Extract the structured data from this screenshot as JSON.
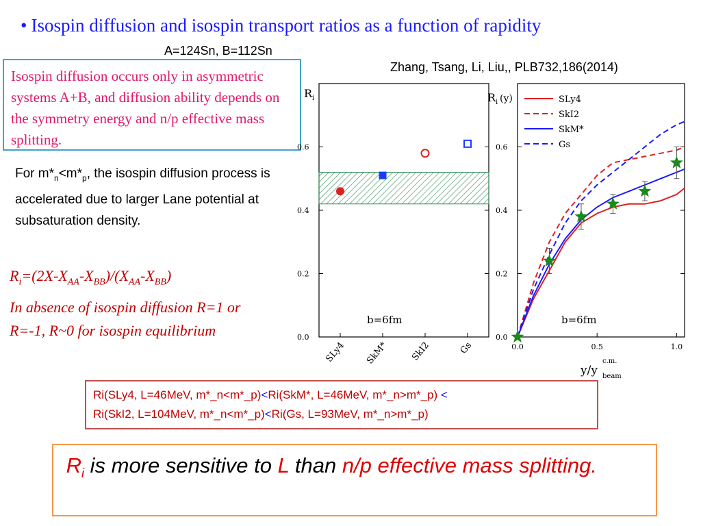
{
  "slide": {
    "bullet": "•",
    "title": "Isospin diffusion and isospin transport ratios as a function of rapidity",
    "system_label": "A=124Sn, B=112Sn",
    "reference": "Zhang, Tsang, Li, Liu,, PLB732,186(2014)",
    "diffusion_box": "Isospin diffusion occurs only in asymmetric systems A+B, and diffusion ability depends on the symmetry energy and n/p effective mass splitting.",
    "effmass": {
      "pre": "For m*",
      "sub_n": "n",
      "mid": "<m*",
      "sub_p": "p",
      "post": ", the isospin diffusion process is accelerated due to larger Lane potential at subsaturation density."
    },
    "formula": {
      "r": "R",
      "r_sub": "i",
      "p1": "=(2X-X",
      "s1": "AA",
      "p2": "-X",
      "s2": "BB",
      "p3": ")/(X",
      "s3": "AA",
      "p4": "-X",
      "s4": "BB",
      "p5": ")"
    },
    "absence_text": "In absence of isospin diffusion R=1 or R=-1, R~0 for isospin equilibrium",
    "ordering": {
      "t1": "Ri(SLy4, L=46MeV, m*_n<m*_p)",
      "lt1": "<",
      "t2": "Ri(SkM*, L=46MeV, m*_n>m*_p)",
      "lt2": " <",
      "t3": "Ri(SkI2, L=104MeV, m*_n<m*_p)",
      "lt3": "<",
      "t4": "Ri(Gs, L=93MeV, m*_n>m*_p)"
    },
    "conclusion": {
      "r": "R",
      "r_sub": "i",
      "t1": " is more sensitive to ",
      "l": "L",
      "t2": " than ",
      "t3": "n/p effective mass splitting."
    }
  },
  "chart_data": [
    {
      "type": "scatter",
      "y_label": "R",
      "y_label_sub": "i",
      "categories": [
        "SLy4",
        "SkM*",
        "SkI2",
        "Gs"
      ],
      "points": [
        {
          "category": "SLy4",
          "value": 0.46,
          "color": "#e02020",
          "marker": "filled-circle"
        },
        {
          "category": "SkM*",
          "value": 0.51,
          "color": "#1a3cff",
          "marker": "filled-square"
        },
        {
          "category": "SkI2",
          "value": 0.58,
          "color": "#e02020",
          "marker": "open-circle"
        },
        {
          "category": "Gs",
          "value": 0.61,
          "color": "#1a3cff",
          "marker": "open-square"
        }
      ],
      "experimental_band": [
        0.42,
        0.52
      ],
      "band_color": "#2e8b57",
      "ylim": [
        0.0,
        0.8
      ],
      "yticks": [
        "0.0",
        "0.2",
        "0.4",
        "0.6"
      ],
      "annotation": "b=6fm"
    },
    {
      "type": "line",
      "y_label": "R",
      "y_label_sub": "i",
      "y_label_suffix": "(y)",
      "x_label": "y/y",
      "x_label_sup": "c.m.",
      "x_label_sub": "beam",
      "xlim": [
        0.0,
        1.05
      ],
      "ylim": [
        0.0,
        0.8
      ],
      "xticks": [
        "0.0",
        "0.5",
        "1.0"
      ],
      "yticks": [
        "0.0",
        "0.2",
        "0.4",
        "0.6"
      ],
      "annotation": "b=6fm",
      "series": [
        {
          "name": "SLy4",
          "color": "#e02020",
          "dash": "solid",
          "x": [
            0.0,
            0.1,
            0.2,
            0.3,
            0.4,
            0.5,
            0.6,
            0.7,
            0.8,
            0.9,
            1.0,
            1.05
          ],
          "y": [
            0.0,
            0.12,
            0.21,
            0.3,
            0.36,
            0.39,
            0.41,
            0.42,
            0.42,
            0.43,
            0.45,
            0.47
          ]
        },
        {
          "name": "SkI2",
          "color": "#e02020",
          "dash": "dashed",
          "x": [
            0.0,
            0.1,
            0.2,
            0.3,
            0.4,
            0.5,
            0.6,
            0.7,
            0.8,
            0.9,
            1.0,
            1.05
          ],
          "y": [
            0.0,
            0.17,
            0.3,
            0.39,
            0.45,
            0.51,
            0.55,
            0.56,
            0.57,
            0.58,
            0.59,
            0.6
          ]
        },
        {
          "name": "SkM*",
          "color": "#1a1aff",
          "dash": "solid",
          "x": [
            0.0,
            0.1,
            0.2,
            0.3,
            0.4,
            0.5,
            0.6,
            0.7,
            0.8,
            0.9,
            1.0,
            1.05
          ],
          "y": [
            0.0,
            0.13,
            0.23,
            0.31,
            0.37,
            0.41,
            0.44,
            0.46,
            0.48,
            0.5,
            0.52,
            0.53
          ]
        },
        {
          "name": "Gs",
          "color": "#1a1aff",
          "dash": "dashed",
          "x": [
            0.0,
            0.1,
            0.2,
            0.3,
            0.4,
            0.5,
            0.6,
            0.7,
            0.8,
            0.9,
            1.0,
            1.05
          ],
          "y": [
            0.0,
            0.15,
            0.26,
            0.36,
            0.43,
            0.48,
            0.52,
            0.56,
            0.6,
            0.64,
            0.67,
            0.68
          ]
        }
      ],
      "experimental_points": {
        "marker": "star",
        "color": "#1a8a1a",
        "x": [
          0.0,
          0.2,
          0.4,
          0.6,
          0.8,
          1.0
        ],
        "y": [
          0.0,
          0.24,
          0.38,
          0.42,
          0.46,
          0.55
        ],
        "yerr": [
          0.0,
          0.04,
          0.04,
          0.03,
          0.03,
          0.05
        ]
      }
    }
  ]
}
